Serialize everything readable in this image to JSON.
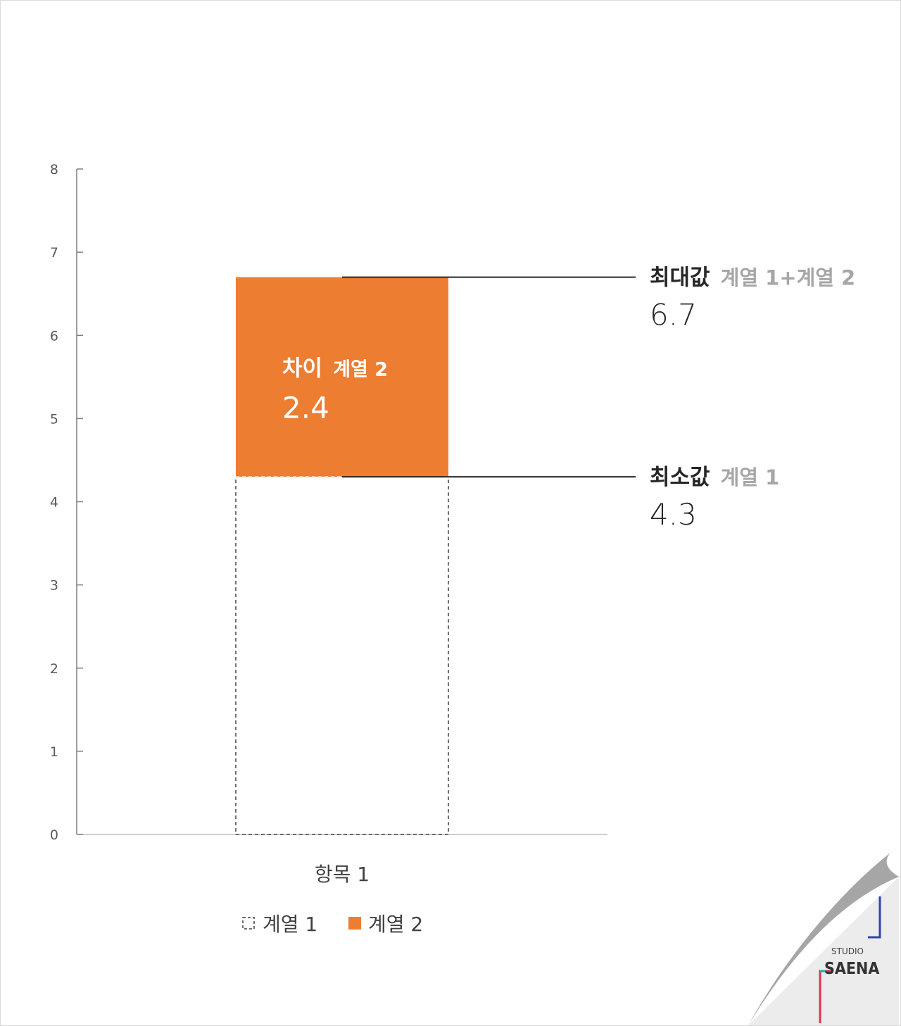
{
  "chart_data": {
    "type": "bar",
    "stacked": true,
    "categories": [
      "항목 1"
    ],
    "series": [
      {
        "name": "계열 1",
        "values": [
          4.3
        ],
        "style": "dashed-outline",
        "color": "#ffffff"
      },
      {
        "name": "계열 2",
        "values": [
          2.4
        ],
        "style": "filled",
        "color": "#ED7D31"
      }
    ],
    "ylim": [
      0,
      8
    ],
    "yticks": [
      "0",
      "1",
      "2",
      "3",
      "4",
      "5",
      "6",
      "7",
      "8"
    ],
    "grid": false,
    "legend": "bottom",
    "annotations": {
      "max": {
        "title": "최대값",
        "sub": "계열 1+계열 2",
        "value": 6.7,
        "value_text": "6.7"
      },
      "min": {
        "title": "최소값",
        "sub": "계열 1",
        "value": 4.3,
        "value_text": "4.3"
      },
      "diff": {
        "title": "차이",
        "sub": "계열 2",
        "value_text": "2.4"
      }
    }
  },
  "legend": {
    "items": [
      {
        "label": "계열 1",
        "icon": "dashed-square-icon"
      },
      {
        "label": "계열 2",
        "icon": "orange-square-icon"
      }
    ]
  },
  "logo": {
    "small": "STUDIO",
    "big": "SAENA",
    "colors": {
      "accent_blue": "#3344aa",
      "accent_red": "#e0344e",
      "accent_teal": "#2aa89a",
      "curl": "#a6a6a6"
    }
  }
}
